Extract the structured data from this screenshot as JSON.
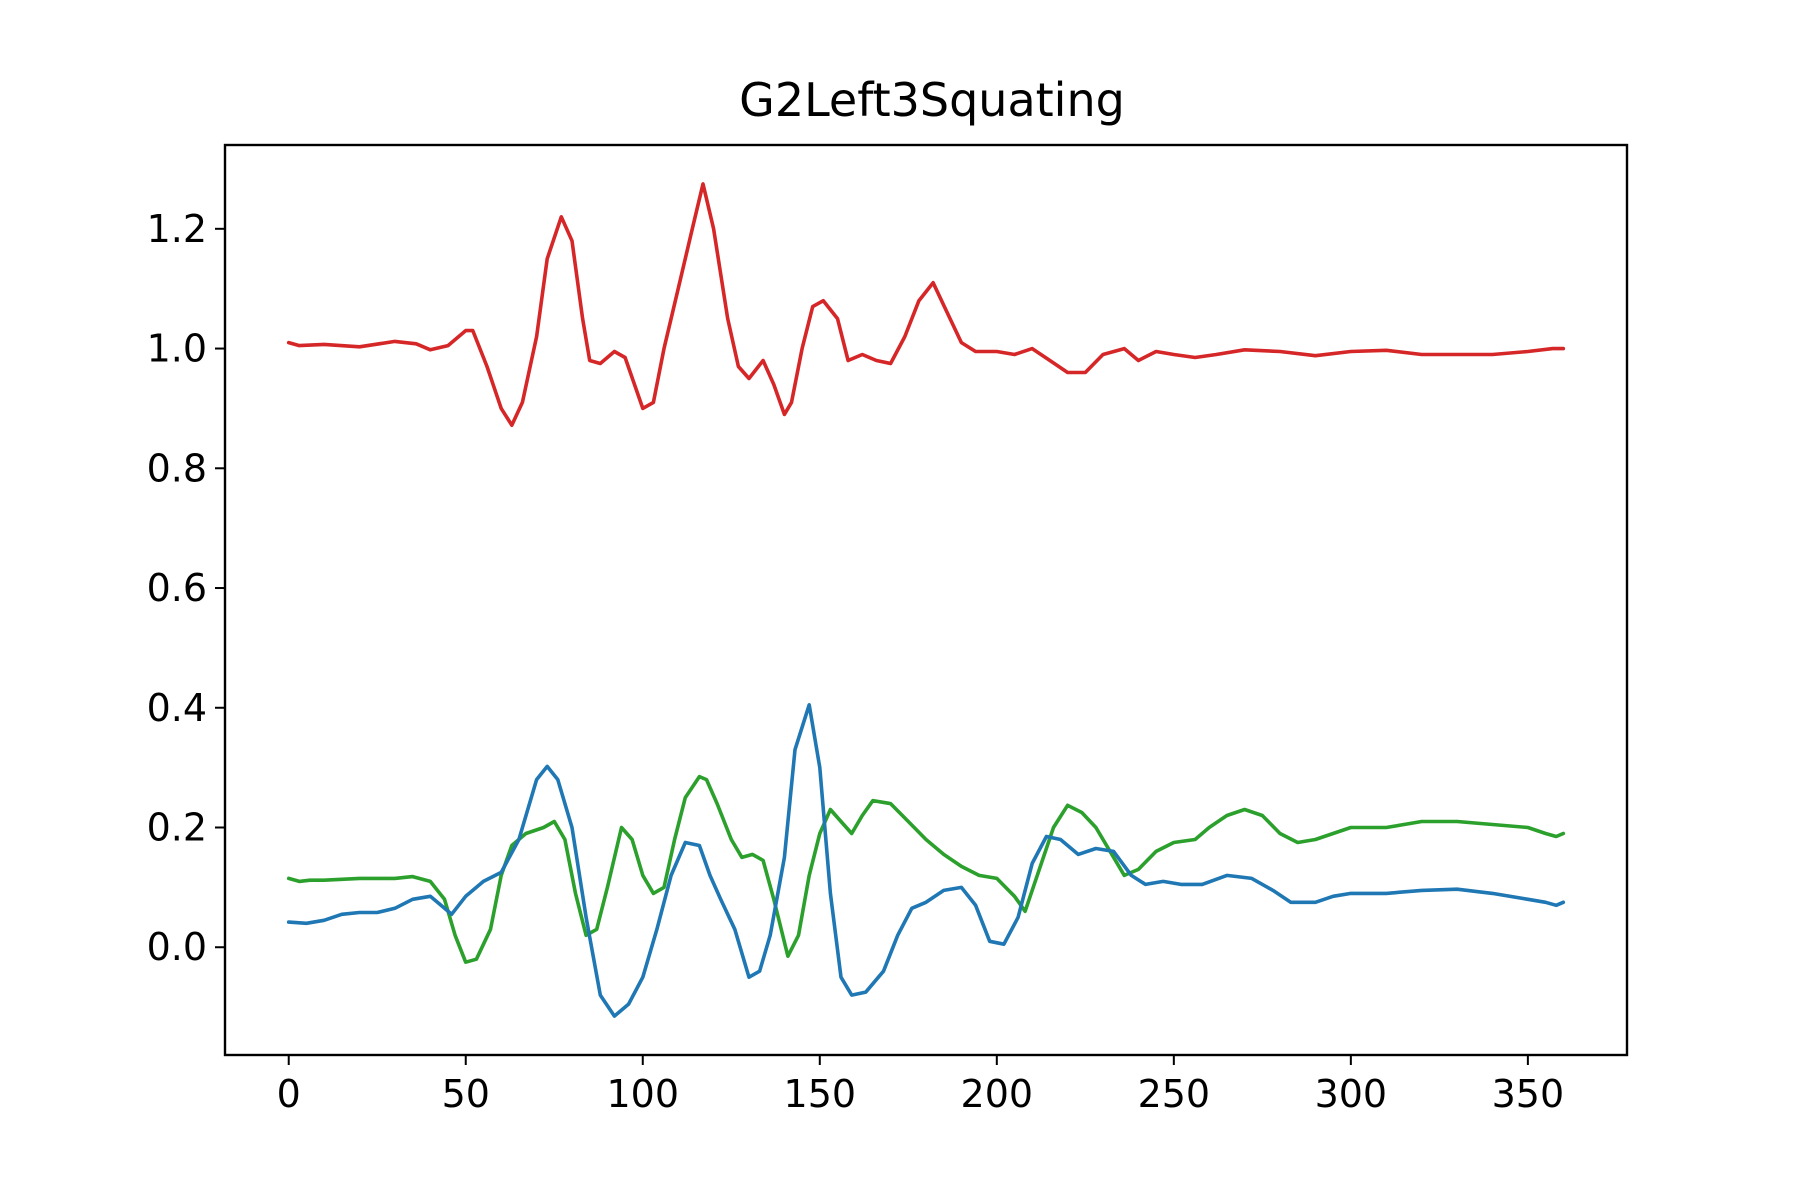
{
  "chart_data": {
    "type": "line",
    "title": "G2Left3Squating",
    "xlabel": "",
    "ylabel": "",
    "xlim": [
      -18,
      378
    ],
    "ylim": [
      -0.18,
      1.34
    ],
    "x_ticks": [
      0,
      50,
      100,
      150,
      200,
      250,
      300,
      350
    ],
    "x_tick_labels": [
      "0",
      "50",
      "100",
      "150",
      "200",
      "250",
      "300",
      "350"
    ],
    "y_ticks": [
      0.0,
      0.2,
      0.4,
      0.6,
      0.8,
      1.0,
      1.2
    ],
    "y_tick_labels": [
      "0.0",
      "0.2",
      "0.4",
      "0.6",
      "0.8",
      "1.0",
      "1.2"
    ],
    "grid": false,
    "legend": "none",
    "series": [
      {
        "color": "#d62728",
        "points": [
          [
            0,
            1.01
          ],
          [
            3,
            1.005
          ],
          [
            10,
            1.007
          ],
          [
            20,
            1.003
          ],
          [
            30,
            1.012
          ],
          [
            36,
            1.008
          ],
          [
            40,
            0.998
          ],
          [
            45,
            1.005
          ],
          [
            50,
            1.03
          ],
          [
            52,
            1.03
          ],
          [
            56,
            0.97
          ],
          [
            60,
            0.9
          ],
          [
            63,
            0.872
          ],
          [
            66,
            0.91
          ],
          [
            70,
            1.02
          ],
          [
            73,
            1.15
          ],
          [
            77,
            1.22
          ],
          [
            80,
            1.18
          ],
          [
            83,
            1.05
          ],
          [
            85,
            0.98
          ],
          [
            88,
            0.975
          ],
          [
            92,
            0.995
          ],
          [
            95,
            0.985
          ],
          [
            100,
            0.9
          ],
          [
            103,
            0.91
          ],
          [
            106,
            1.0
          ],
          [
            110,
            1.1
          ],
          [
            114,
            1.2
          ],
          [
            117,
            1.275
          ],
          [
            120,
            1.2
          ],
          [
            124,
            1.05
          ],
          [
            127,
            0.97
          ],
          [
            130,
            0.95
          ],
          [
            134,
            0.98
          ],
          [
            137,
            0.94
          ],
          [
            140,
            0.89
          ],
          [
            142,
            0.91
          ],
          [
            145,
            1.0
          ],
          [
            148,
            1.07
          ],
          [
            151,
            1.08
          ],
          [
            155,
            1.05
          ],
          [
            158,
            0.98
          ],
          [
            162,
            0.99
          ],
          [
            166,
            0.98
          ],
          [
            170,
            0.975
          ],
          [
            174,
            1.02
          ],
          [
            178,
            1.08
          ],
          [
            182,
            1.11
          ],
          [
            186,
            1.06
          ],
          [
            190,
            1.01
          ],
          [
            194,
            0.995
          ],
          [
            200,
            0.995
          ],
          [
            205,
            0.99
          ],
          [
            210,
            1.0
          ],
          [
            215,
            0.98
          ],
          [
            220,
            0.96
          ],
          [
            225,
            0.96
          ],
          [
            230,
            0.99
          ],
          [
            236,
            1.0
          ],
          [
            240,
            0.98
          ],
          [
            245,
            0.995
          ],
          [
            250,
            0.99
          ],
          [
            256,
            0.985
          ],
          [
            262,
            0.99
          ],
          [
            270,
            0.998
          ],
          [
            280,
            0.995
          ],
          [
            290,
            0.988
          ],
          [
            300,
            0.995
          ],
          [
            310,
            0.997
          ],
          [
            320,
            0.99
          ],
          [
            330,
            0.99
          ],
          [
            340,
            0.99
          ],
          [
            350,
            0.995
          ],
          [
            357,
            1.0
          ],
          [
            360,
            1.0
          ]
        ]
      },
      {
        "color": "#2ca02c",
        "points": [
          [
            0,
            0.115
          ],
          [
            3,
            0.11
          ],
          [
            6,
            0.112
          ],
          [
            10,
            0.112
          ],
          [
            20,
            0.115
          ],
          [
            30,
            0.115
          ],
          [
            35,
            0.118
          ],
          [
            40,
            0.11
          ],
          [
            44,
            0.08
          ],
          [
            47,
            0.02
          ],
          [
            50,
            -0.025
          ],
          [
            53,
            -0.02
          ],
          [
            57,
            0.03
          ],
          [
            60,
            0.12
          ],
          [
            63,
            0.17
          ],
          [
            67,
            0.19
          ],
          [
            72,
            0.2
          ],
          [
            75,
            0.21
          ],
          [
            78,
            0.18
          ],
          [
            81,
            0.09
          ],
          [
            84,
            0.02
          ],
          [
            87,
            0.03
          ],
          [
            90,
            0.1
          ],
          [
            94,
            0.2
          ],
          [
            97,
            0.18
          ],
          [
            100,
            0.12
          ],
          [
            103,
            0.09
          ],
          [
            106,
            0.1
          ],
          [
            109,
            0.18
          ],
          [
            112,
            0.25
          ],
          [
            116,
            0.285
          ],
          [
            118,
            0.28
          ],
          [
            121,
            0.24
          ],
          [
            125,
            0.18
          ],
          [
            128,
            0.15
          ],
          [
            131,
            0.155
          ],
          [
            134,
            0.145
          ],
          [
            137,
            0.08
          ],
          [
            141,
            -0.015
          ],
          [
            144,
            0.02
          ],
          [
            147,
            0.12
          ],
          [
            150,
            0.19
          ],
          [
            153,
            0.23
          ],
          [
            156,
            0.21
          ],
          [
            159,
            0.19
          ],
          [
            162,
            0.22
          ],
          [
            165,
            0.245
          ],
          [
            170,
            0.24
          ],
          [
            175,
            0.21
          ],
          [
            180,
            0.18
          ],
          [
            185,
            0.155
          ],
          [
            190,
            0.135
          ],
          [
            195,
            0.12
          ],
          [
            200,
            0.115
          ],
          [
            205,
            0.085
          ],
          [
            208,
            0.06
          ],
          [
            212,
            0.13
          ],
          [
            216,
            0.2
          ],
          [
            220,
            0.237
          ],
          [
            224,
            0.225
          ],
          [
            228,
            0.2
          ],
          [
            232,
            0.16
          ],
          [
            236,
            0.12
          ],
          [
            240,
            0.13
          ],
          [
            245,
            0.16
          ],
          [
            250,
            0.175
          ],
          [
            256,
            0.18
          ],
          [
            260,
            0.2
          ],
          [
            265,
            0.22
          ],
          [
            270,
            0.23
          ],
          [
            275,
            0.22
          ],
          [
            280,
            0.19
          ],
          [
            285,
            0.175
          ],
          [
            290,
            0.18
          ],
          [
            295,
            0.19
          ],
          [
            300,
            0.2
          ],
          [
            310,
            0.2
          ],
          [
            320,
            0.21
          ],
          [
            330,
            0.21
          ],
          [
            340,
            0.205
          ],
          [
            350,
            0.2
          ],
          [
            355,
            0.19
          ],
          [
            358,
            0.185
          ],
          [
            360,
            0.19
          ]
        ]
      },
      {
        "color": "#1f77b4",
        "points": [
          [
            0,
            0.042
          ],
          [
            5,
            0.04
          ],
          [
            10,
            0.045
          ],
          [
            15,
            0.055
          ],
          [
            20,
            0.058
          ],
          [
            25,
            0.058
          ],
          [
            30,
            0.065
          ],
          [
            35,
            0.08
          ],
          [
            40,
            0.085
          ],
          [
            43,
            0.07
          ],
          [
            46,
            0.055
          ],
          [
            50,
            0.085
          ],
          [
            55,
            0.11
          ],
          [
            60,
            0.125
          ],
          [
            65,
            0.18
          ],
          [
            70,
            0.28
          ],
          [
            73,
            0.302
          ],
          [
            76,
            0.28
          ],
          [
            80,
            0.2
          ],
          [
            84,
            0.05
          ],
          [
            88,
            -0.08
          ],
          [
            92,
            -0.115
          ],
          [
            96,
            -0.095
          ],
          [
            100,
            -0.05
          ],
          [
            104,
            0.03
          ],
          [
            108,
            0.12
          ],
          [
            112,
            0.175
          ],
          [
            116,
            0.17
          ],
          [
            119,
            0.12
          ],
          [
            122,
            0.08
          ],
          [
            126,
            0.03
          ],
          [
            130,
            -0.05
          ],
          [
            133,
            -0.04
          ],
          [
            136,
            0.02
          ],
          [
            140,
            0.15
          ],
          [
            143,
            0.33
          ],
          [
            147,
            0.405
          ],
          [
            150,
            0.3
          ],
          [
            153,
            0.09
          ],
          [
            156,
            -0.05
          ],
          [
            159,
            -0.08
          ],
          [
            163,
            -0.075
          ],
          [
            168,
            -0.04
          ],
          [
            172,
            0.02
          ],
          [
            176,
            0.065
          ],
          [
            180,
            0.075
          ],
          [
            185,
            0.095
          ],
          [
            190,
            0.1
          ],
          [
            194,
            0.07
          ],
          [
            198,
            0.01
          ],
          [
            202,
            0.005
          ],
          [
            206,
            0.05
          ],
          [
            210,
            0.14
          ],
          [
            214,
            0.185
          ],
          [
            218,
            0.18
          ],
          [
            223,
            0.155
          ],
          [
            228,
            0.165
          ],
          [
            233,
            0.16
          ],
          [
            238,
            0.12
          ],
          [
            242,
            0.105
          ],
          [
            247,
            0.11
          ],
          [
            252,
            0.105
          ],
          [
            258,
            0.105
          ],
          [
            265,
            0.12
          ],
          [
            272,
            0.115
          ],
          [
            278,
            0.095
          ],
          [
            283,
            0.075
          ],
          [
            290,
            0.075
          ],
          [
            295,
            0.085
          ],
          [
            300,
            0.09
          ],
          [
            310,
            0.09
          ],
          [
            320,
            0.095
          ],
          [
            330,
            0.097
          ],
          [
            340,
            0.09
          ],
          [
            350,
            0.08
          ],
          [
            355,
            0.075
          ],
          [
            358,
            0.07
          ],
          [
            360,
            0.075
          ]
        ]
      }
    ]
  }
}
